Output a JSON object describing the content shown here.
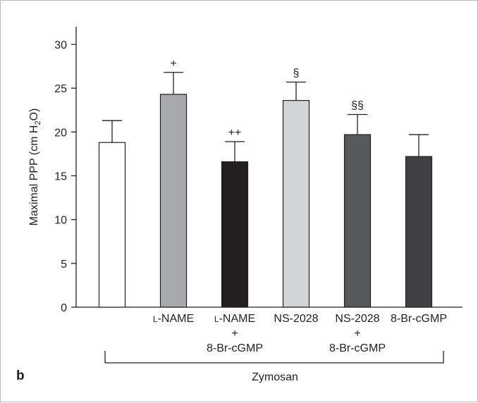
{
  "panel_label": "b",
  "chart_data": {
    "type": "bar",
    "ylabel": "Maximal PPP (cm H₂O)",
    "ylabel_parts": [
      "Maximal PPP (cm H",
      "2",
      "O)"
    ],
    "ylim": [
      0,
      30
    ],
    "yticks": [
      0,
      5,
      10,
      15,
      20,
      25,
      30
    ],
    "grid": false,
    "categories": [
      {
        "lines": []
      },
      {
        "lines": [
          "L-NAME"
        ]
      },
      {
        "lines": [
          "L-NAME",
          "+",
          "8-Br-cGMP"
        ]
      },
      {
        "lines": [
          "NS-2028"
        ]
      },
      {
        "lines": [
          "NS-2028",
          "+",
          "8-Br-cGMP"
        ]
      },
      {
        "lines": [
          "8-Br-cGMP"
        ]
      }
    ],
    "values": [
      18.8,
      24.3,
      16.6,
      23.6,
      19.7,
      17.2
    ],
    "errors": [
      2.5,
      2.5,
      2.3,
      2.1,
      2.3,
      2.5
    ],
    "markers": [
      "",
      "+",
      "++",
      "§",
      "§§",
      ""
    ],
    "bar_colors": [
      "#ffffff",
      "#a7a9ac",
      "#231f20",
      "#d1d3d4",
      "#58595b",
      "#414042"
    ],
    "group_label": "Zymosan"
  }
}
